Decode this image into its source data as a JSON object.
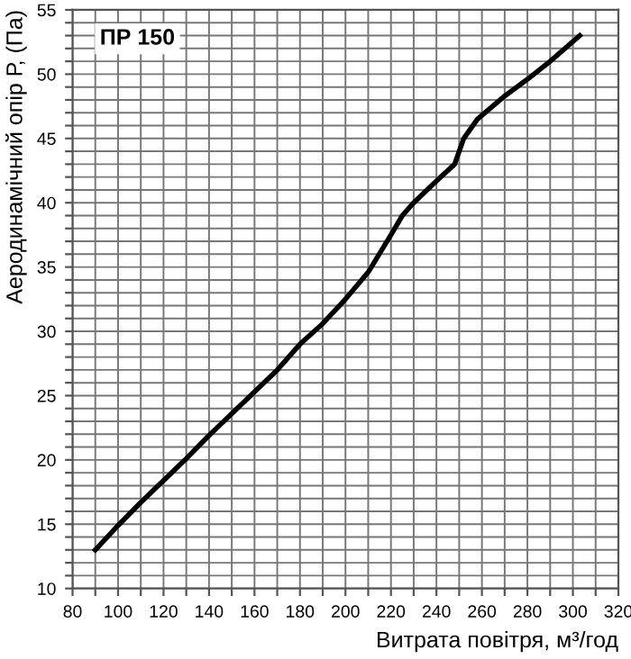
{
  "chart_data": {
    "type": "line",
    "xlabel": "Витрата повітря, м³/год",
    "ylabel": "Аеродинамічний опір Р, (Па)",
    "annotations": [
      "ПР 150"
    ],
    "x": [
      90,
      100,
      110,
      120,
      130,
      140,
      150,
      160,
      170,
      180,
      190,
      200,
      210,
      220,
      225,
      230,
      240,
      248,
      252,
      258,
      270,
      280,
      290,
      303
    ],
    "series": [
      {
        "color": "#000000",
        "values": [
          13,
          14.9,
          16.7,
          18.4,
          20.1,
          21.9,
          23.6,
          25.3,
          27,
          29,
          30.6,
          32.5,
          34.6,
          37.5,
          39,
          40,
          41.7,
          43,
          45,
          46.5,
          48.3,
          49.6,
          51,
          53
        ]
      }
    ],
    "xlim": [
      80,
      320
    ],
    "ylim": [
      10,
      55
    ],
    "xticks": [
      80,
      {
        "value": 90,
        "label": null
      },
      100,
      {
        "value": 110,
        "label": null
      },
      120,
      {
        "value": 130,
        "label": null
      },
      140,
      {
        "value": 150,
        "label": null
      },
      160,
      {
        "value": 170,
        "label": null
      },
      180,
      {
        "value": 190,
        "label": null
      },
      200,
      {
        "value": 210,
        "label": null
      },
      220,
      {
        "value": 230,
        "label": null
      },
      240,
      {
        "value": 250,
        "label": null
      },
      260,
      {
        "value": 270,
        "label": null
      },
      280,
      {
        "value": 290,
        "label": null
      },
      300,
      {
        "value": 310,
        "label": null
      },
      320
    ],
    "yticks": [
      10,
      {
        "value": 11,
        "label": null
      },
      {
        "value": 12,
        "label": null
      },
      {
        "value": 13,
        "label": null
      },
      {
        "value": 14,
        "label": null
      },
      15,
      {
        "value": 16,
        "label": null
      },
      {
        "value": 17,
        "label": null
      },
      {
        "value": 18,
        "label": null
      },
      {
        "value": 19,
        "label": null
      },
      20,
      {
        "value": 21,
        "label": null
      },
      {
        "value": 22,
        "label": null
      },
      {
        "value": 23,
        "label": null
      },
      {
        "value": 24,
        "label": null
      },
      25,
      {
        "value": 26,
        "label": null
      },
      {
        "value": 27,
        "label": null
      },
      {
        "value": 28,
        "label": null
      },
      {
        "value": 29,
        "label": null
      },
      30,
      {
        "value": 31,
        "label": null
      },
      {
        "value": 32,
        "label": null
      },
      {
        "value": 33,
        "label": null
      },
      {
        "value": 34,
        "label": null
      },
      35,
      {
        "value": 36,
        "label": null
      },
      {
        "value": 37,
        "label": null
      },
      {
        "value": 38,
        "label": null
      },
      {
        "value": 39,
        "label": null
      },
      40,
      {
        "value": 41,
        "label": null
      },
      {
        "value": 42,
        "label": null
      },
      {
        "value": 43,
        "label": null
      },
      {
        "value": 44,
        "label": null
      },
      45,
      {
        "value": 46,
        "label": null
      },
      {
        "value": 47,
        "label": null
      },
      {
        "value": 48,
        "label": null
      },
      {
        "value": 49,
        "label": null
      },
      50,
      {
        "value": 51,
        "label": null
      },
      {
        "value": 52,
        "label": null
      },
      {
        "value": 53,
        "label": null
      },
      {
        "value": 54,
        "label": null
      },
      55
    ],
    "grid": true,
    "legend": false,
    "marker": "none",
    "line_style": "solid"
  }
}
